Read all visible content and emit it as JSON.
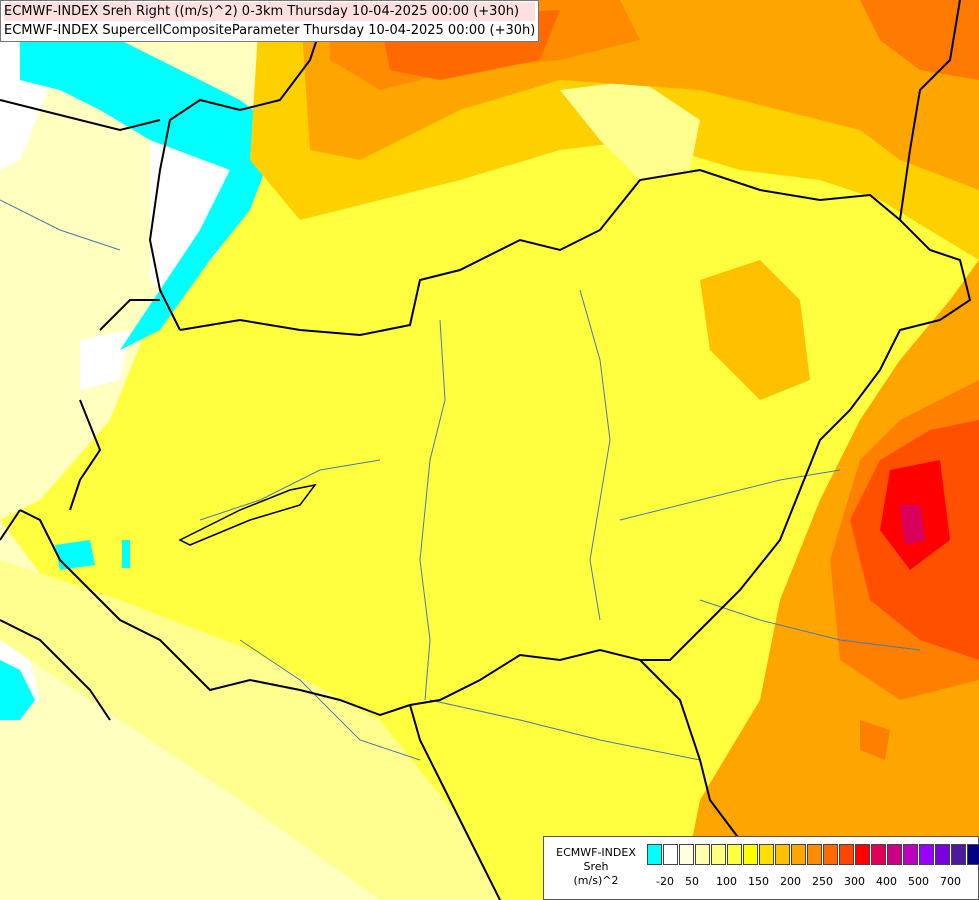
{
  "titles": {
    "line1": "ECMWF-INDEX Sreh Right ((m/s)^2) 0-3km Thursday 10-04-2025 00:00 (+30h)",
    "line2": "ECMWF-INDEX SupercellCompositeParameter Thursday 10-04-2025 00:00 (+30h)"
  },
  "legend": {
    "name1": "ECMWF-INDEX",
    "name2": "Sreh",
    "unit": "(m/s)^2",
    "colors": [
      "#00ffff",
      "#ffffff",
      "#ffffe0",
      "#ffffb0",
      "#ffff80",
      "#ffff40",
      "#ffff00",
      "#ffdd00",
      "#ffc000",
      "#ffa500",
      "#ff8c00",
      "#ff6a00",
      "#ff4500",
      "#ff0000",
      "#e0005a",
      "#cc0088",
      "#c000c0",
      "#9900ff",
      "#7a00e0",
      "#4a1a9a",
      "#000080"
    ],
    "ticks": [
      "-20",
      "50",
      "100",
      "150",
      "200",
      "250",
      "300",
      "400",
      "500",
      "700"
    ]
  },
  "colors": {
    "low_cyan": "#00ffff",
    "pale": "#ffffc0",
    "yellow": "#ffff00",
    "orange": "#ffa500",
    "red": "#ff2000",
    "magenta": "#cc0066"
  }
}
